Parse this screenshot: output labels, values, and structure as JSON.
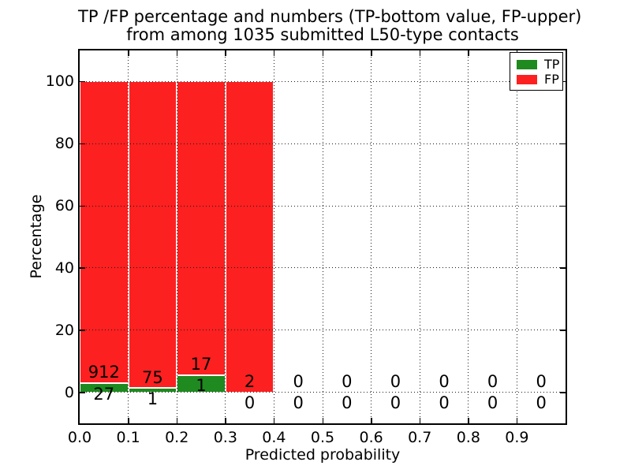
{
  "chart_data": {
    "type": "bar",
    "stacked": true,
    "title_line1": "TP /FP percentage and numbers (TP-bottom value, FP-upper)",
    "title_line2": "from among 1035 submitted L50-type contacts",
    "xlabel": "Predicted probability",
    "ylabel": "Percentage",
    "xlim": [
      0.0,
      1.0
    ],
    "ylim": [
      -10,
      110
    ],
    "bin_width": 0.1,
    "x_tick_labels": [
      "0.0",
      "0.1",
      "0.2",
      "0.3",
      "0.4",
      "0.5",
      "0.6",
      "0.7",
      "0.8",
      "0.9"
    ],
    "y_ticks": [
      0,
      20,
      40,
      60,
      80,
      100
    ],
    "y_tick_labels": [
      "0",
      "20",
      "40",
      "60",
      "80",
      "100"
    ],
    "grid": "dotted major gridlines drawn above bars",
    "total_contacts": 1035,
    "bins": [
      {
        "x_start": 0.0,
        "tp_count": 27,
        "fp_count": 912
      },
      {
        "x_start": 0.1,
        "tp_count": 1,
        "fp_count": 75
      },
      {
        "x_start": 0.2,
        "tp_count": 1,
        "fp_count": 17
      },
      {
        "x_start": 0.3,
        "tp_count": 0,
        "fp_count": 2
      },
      {
        "x_start": 0.4,
        "tp_count": 0,
        "fp_count": 0
      },
      {
        "x_start": 0.5,
        "tp_count": 0,
        "fp_count": 0
      },
      {
        "x_start": 0.6,
        "tp_count": 0,
        "fp_count": 0
      },
      {
        "x_start": 0.7,
        "tp_count": 0,
        "fp_count": 0
      },
      {
        "x_start": 0.8,
        "tp_count": 0,
        "fp_count": 0
      },
      {
        "x_start": 0.9,
        "tp_count": 0,
        "fp_count": 0
      }
    ],
    "tp_pct_by_bin": [
      2.9,
      1.3,
      5.6,
      0.0,
      0,
      0,
      0,
      0,
      0,
      0
    ],
    "bar_total_pct": 100,
    "legend": {
      "position": "upper right",
      "entries": [
        {
          "label": "TP",
          "color": "#1f8a1f"
        },
        {
          "label": "FP",
          "color": "#fc2020"
        }
      ]
    },
    "colors": {
      "tp": "#1f8a1f",
      "fp": "#fc2020",
      "bar_edge": "#ffffff",
      "grid": "#1a1a1a",
      "spine": "#000000",
      "text": "#000000",
      "background": "#ffffff"
    }
  }
}
